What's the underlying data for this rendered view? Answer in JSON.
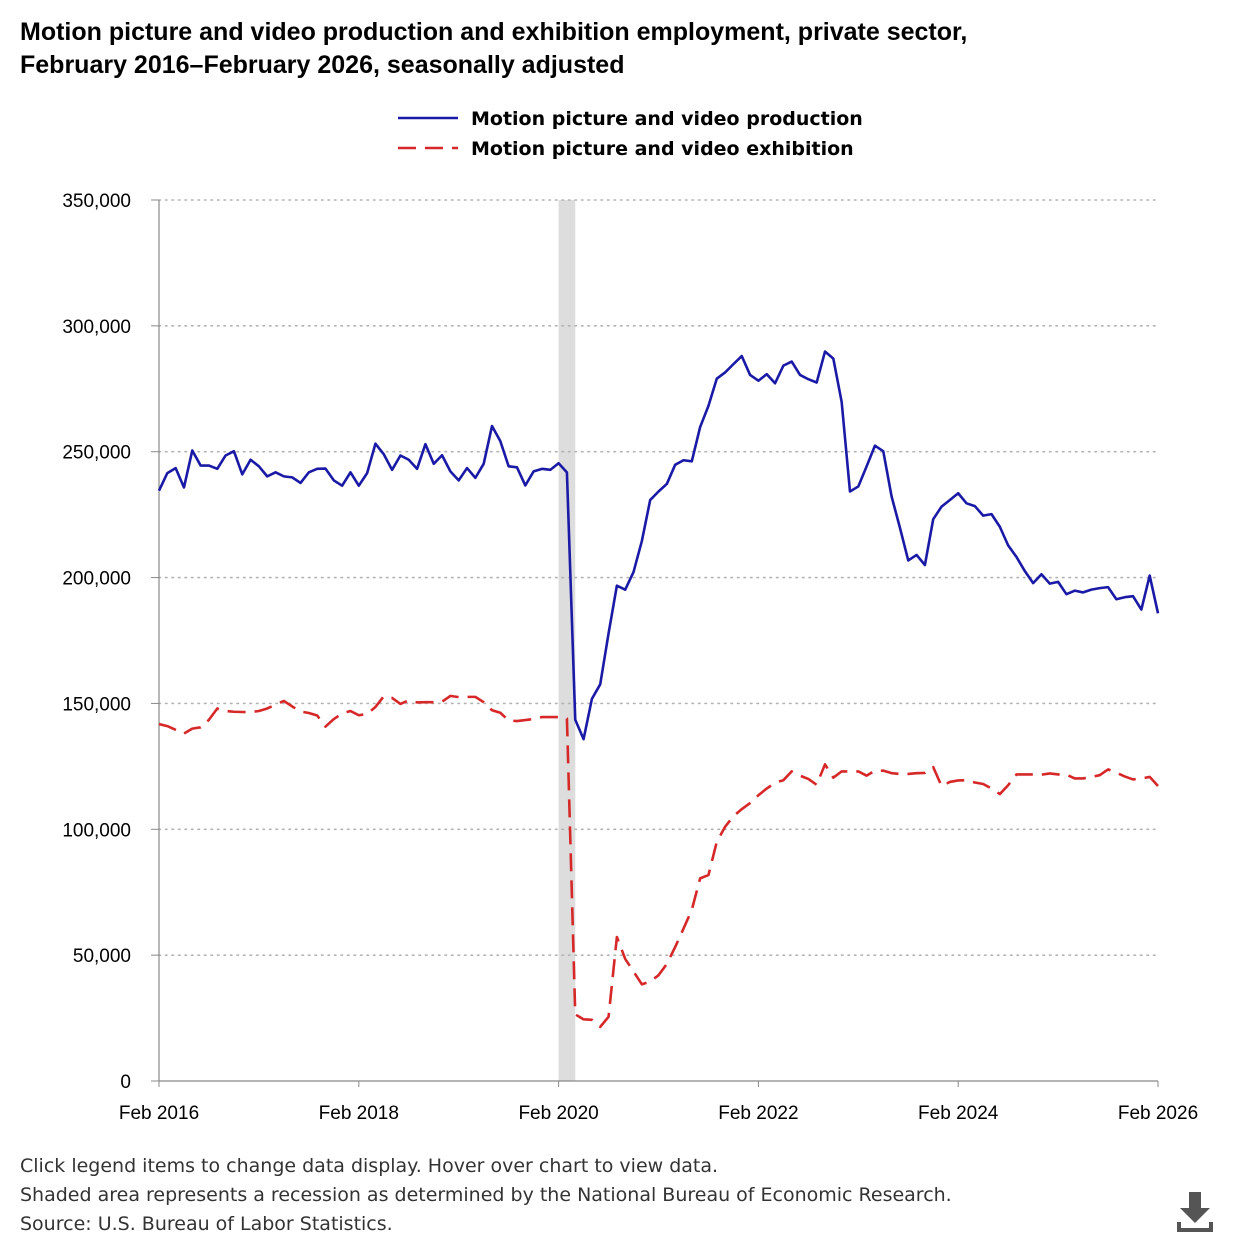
{
  "title_line1": "Motion picture and video production and exhibition employment, private sector,",
  "title_line2": "February 2016–February 2026, seasonally adjusted",
  "footnotes": [
    "Click legend items to change data display. Hover over chart to view data.",
    "Shaded area represents a recession as determined by the National Bureau of Economic Research.",
    "Source: U.S. Bureau of Labor Statistics."
  ],
  "download_icon": "download-icon",
  "chart_data": {
    "type": "line",
    "title": "Motion picture and video production and exhibition employment, private sector, February 2016–February 2026, seasonally adjusted",
    "ylim": [
      0,
      350000
    ],
    "yticks": [
      0,
      50000,
      100000,
      150000,
      200000,
      250000,
      300000,
      350000
    ],
    "ytick_labels": [
      "0",
      "50,000",
      "100,000",
      "150,000",
      "200,000",
      "250,000",
      "300,000",
      "350,000"
    ],
    "xlim": [
      "2016-02",
      "2026-02"
    ],
    "xtick_labels": [
      "Feb 2016",
      "Feb 2018",
      "Feb 2020",
      "Feb 2022",
      "Feb 2024",
      "Feb 2026"
    ],
    "grid": "horizontal dotted",
    "legend_position": "top-center",
    "recession_shading": {
      "start": "2020-02",
      "end": "2020-04",
      "color": "#dddddd"
    },
    "series": [
      {
        "name": "Motion picture and video production",
        "color": "#1a1aa6",
        "style": "solid",
        "points": [
          [
            "2016-02",
            234500
          ],
          [
            "2016-03",
            241500
          ],
          [
            "2016-04",
            243500
          ],
          [
            "2016-05",
            235800
          ],
          [
            "2016-06",
            250500
          ],
          [
            "2016-07",
            244500
          ],
          [
            "2016-08",
            244500
          ],
          [
            "2016-09",
            243200
          ],
          [
            "2016-10",
            248500
          ],
          [
            "2016-11",
            250200
          ],
          [
            "2016-12",
            241000
          ],
          [
            "2017-01",
            246800
          ],
          [
            "2017-02",
            244200
          ],
          [
            "2017-03",
            240200
          ],
          [
            "2017-04",
            241800
          ],
          [
            "2017-05",
            240200
          ],
          [
            "2017-06",
            239800
          ],
          [
            "2017-07",
            237600
          ],
          [
            "2017-08",
            241800
          ],
          [
            "2017-09",
            243200
          ],
          [
            "2017-10",
            243300
          ],
          [
            "2017-11",
            238600
          ],
          [
            "2017-12",
            236500
          ],
          [
            "2018-01",
            241800
          ],
          [
            "2018-02",
            236500
          ],
          [
            "2018-03",
            241500
          ],
          [
            "2018-04",
            253200
          ],
          [
            "2018-05",
            249000
          ],
          [
            "2018-06",
            242800
          ],
          [
            "2018-07",
            248500
          ],
          [
            "2018-08",
            246800
          ],
          [
            "2018-09",
            243200
          ],
          [
            "2018-10",
            253000
          ],
          [
            "2018-11",
            245200
          ],
          [
            "2018-12",
            248600
          ],
          [
            "2019-01",
            242200
          ],
          [
            "2019-02",
            238600
          ],
          [
            "2019-03",
            243500
          ],
          [
            "2019-04",
            239600
          ],
          [
            "2019-05",
            245200
          ],
          [
            "2019-06",
            260200
          ],
          [
            "2019-07",
            254200
          ],
          [
            "2019-08",
            244200
          ],
          [
            "2019-09",
            243800
          ],
          [
            "2019-10",
            236600
          ],
          [
            "2019-11",
            242200
          ],
          [
            "2019-12",
            243200
          ],
          [
            "2020-01",
            242800
          ],
          [
            "2020-02",
            245400
          ],
          [
            "2020-03",
            241800
          ],
          [
            "2020-04",
            143500
          ],
          [
            "2020-05",
            135800
          ],
          [
            "2020-06",
            151800
          ],
          [
            "2020-07",
            157600
          ],
          [
            "2020-08",
            177800
          ],
          [
            "2020-09",
            196800
          ],
          [
            "2020-10",
            195200
          ],
          [
            "2020-11",
            202200
          ],
          [
            "2020-12",
            214500
          ],
          [
            "2021-01",
            230800
          ],
          [
            "2021-02",
            234200
          ],
          [
            "2021-03",
            237200
          ],
          [
            "2021-04",
            244800
          ],
          [
            "2021-05",
            246600
          ],
          [
            "2021-06",
            246200
          ],
          [
            "2021-07",
            259800
          ],
          [
            "2021-08",
            268200
          ],
          [
            "2021-09",
            279000
          ],
          [
            "2021-10",
            281500
          ],
          [
            "2021-11",
            284800
          ],
          [
            "2021-12",
            288000
          ],
          [
            "2022-01",
            280500
          ],
          [
            "2022-02",
            278200
          ],
          [
            "2022-03",
            280800
          ],
          [
            "2022-04",
            277200
          ],
          [
            "2022-05",
            284200
          ],
          [
            "2022-06",
            285800
          ],
          [
            "2022-07",
            280500
          ],
          [
            "2022-08",
            278800
          ],
          [
            "2022-09",
            277500
          ],
          [
            "2022-10",
            289800
          ],
          [
            "2022-11",
            287000
          ],
          [
            "2022-12",
            269800
          ],
          [
            "2023-01",
            234200
          ],
          [
            "2023-02",
            236200
          ],
          [
            "2023-03",
            244200
          ],
          [
            "2023-04",
            252400
          ],
          [
            "2023-05",
            250200
          ],
          [
            "2023-06",
            232200
          ],
          [
            "2023-07",
            219800
          ],
          [
            "2023-08",
            206800
          ],
          [
            "2023-09",
            209000
          ],
          [
            "2023-10",
            205000
          ],
          [
            "2023-11",
            223200
          ],
          [
            "2023-12",
            228200
          ],
          [
            "2024-01",
            230800
          ],
          [
            "2024-02",
            233500
          ],
          [
            "2024-03",
            229500
          ],
          [
            "2024-04",
            228400
          ],
          [
            "2024-05",
            224600
          ],
          [
            "2024-06",
            225200
          ],
          [
            "2024-07",
            220200
          ],
          [
            "2024-08",
            212800
          ],
          [
            "2024-09",
            208200
          ],
          [
            "2024-10",
            202600
          ],
          [
            "2024-11",
            197800
          ],
          [
            "2024-12",
            201300
          ],
          [
            "2025-01",
            197600
          ],
          [
            "2025-02",
            198300
          ],
          [
            "2025-03",
            193400
          ],
          [
            "2025-04",
            194800
          ],
          [
            "2025-05",
            194100
          ],
          [
            "2025-06",
            195200
          ],
          [
            "2025-07",
            195800
          ],
          [
            "2025-08",
            196200
          ],
          [
            "2025-09",
            191400
          ],
          [
            "2025-10",
            192200
          ],
          [
            "2025-11",
            192600
          ],
          [
            "2025-12",
            187300
          ],
          [
            "2026-01",
            200800
          ],
          [
            "2026-02",
            185800
          ]
        ]
      },
      {
        "name": "Motion picture and video exhibition",
        "color": "#d62828",
        "style": "dashed",
        "points": [
          [
            "2016-02",
            141800
          ],
          [
            "2016-03",
            141000
          ],
          [
            "2016-04",
            139500
          ],
          [
            "2016-05",
            138000
          ],
          [
            "2016-06",
            140000
          ],
          [
            "2016-07",
            140500
          ],
          [
            "2016-08",
            143500
          ],
          [
            "2016-09",
            148000
          ],
          [
            "2016-10",
            147000
          ],
          [
            "2016-11",
            146700
          ],
          [
            "2016-12",
            146600
          ],
          [
            "2017-01",
            146500
          ],
          [
            "2017-02",
            147000
          ],
          [
            "2017-03",
            148000
          ],
          [
            "2017-04",
            149500
          ],
          [
            "2017-05",
            151000
          ],
          [
            "2017-06",
            148800
          ],
          [
            "2017-07",
            146800
          ],
          [
            "2017-08",
            146200
          ],
          [
            "2017-09",
            145200
          ],
          [
            "2017-10",
            140800
          ],
          [
            "2017-11",
            143800
          ],
          [
            "2017-12",
            146000
          ],
          [
            "2018-01",
            147000
          ],
          [
            "2018-02",
            145300
          ],
          [
            "2018-03",
            145800
          ],
          [
            "2018-04",
            148600
          ],
          [
            "2018-05",
            152800
          ],
          [
            "2018-06",
            152200
          ],
          [
            "2018-07",
            149800
          ],
          [
            "2018-08",
            151200
          ],
          [
            "2018-09",
            150400
          ],
          [
            "2018-10",
            150500
          ],
          [
            "2018-11",
            150500
          ],
          [
            "2018-12",
            150700
          ],
          [
            "2019-01",
            153000
          ],
          [
            "2019-02",
            152500
          ],
          [
            "2019-03",
            152600
          ],
          [
            "2019-04",
            152600
          ],
          [
            "2019-05",
            150500
          ],
          [
            "2019-06",
            147300
          ],
          [
            "2019-07",
            146300
          ],
          [
            "2019-08",
            143200
          ],
          [
            "2019-09",
            143000
          ],
          [
            "2019-10",
            143400
          ],
          [
            "2019-11",
            143800
          ],
          [
            "2019-12",
            144600
          ],
          [
            "2020-01",
            144600
          ],
          [
            "2020-02",
            144600
          ],
          [
            "2020-03",
            144000
          ],
          [
            "2020-04",
            26500
          ],
          [
            "2020-05",
            24500
          ],
          [
            "2020-06",
            24300
          ],
          [
            "2020-07",
            21500
          ],
          [
            "2020-08",
            25500
          ],
          [
            "2020-09",
            57200
          ],
          [
            "2020-10",
            48500
          ],
          [
            "2020-11",
            43500
          ],
          [
            "2020-12",
            38400
          ],
          [
            "2021-01",
            39500
          ],
          [
            "2021-02",
            42000
          ],
          [
            "2021-03",
            46500
          ],
          [
            "2021-04",
            53200
          ],
          [
            "2021-05",
            60500
          ],
          [
            "2021-06",
            68000
          ],
          [
            "2021-07",
            80500
          ],
          [
            "2021-08",
            81800
          ],
          [
            "2021-09",
            95000
          ],
          [
            "2021-10",
            101000
          ],
          [
            "2021-11",
            105200
          ],
          [
            "2021-12",
            108000
          ],
          [
            "2022-01",
            110400
          ],
          [
            "2022-02",
            113500
          ],
          [
            "2022-03",
            116200
          ],
          [
            "2022-04",
            118500
          ],
          [
            "2022-05",
            119500
          ],
          [
            "2022-06",
            123000
          ],
          [
            "2022-07",
            121300
          ],
          [
            "2022-08",
            120000
          ],
          [
            "2022-09",
            117700
          ],
          [
            "2022-10",
            125800
          ],
          [
            "2022-11",
            120500
          ],
          [
            "2022-12",
            123000
          ],
          [
            "2023-01",
            123000
          ],
          [
            "2023-02",
            123000
          ],
          [
            "2023-03",
            121300
          ],
          [
            "2023-04",
            123300
          ],
          [
            "2023-05",
            123300
          ],
          [
            "2023-06",
            122300
          ],
          [
            "2023-07",
            122000
          ],
          [
            "2023-08",
            122000
          ],
          [
            "2023-09",
            122300
          ],
          [
            "2023-10",
            122400
          ],
          [
            "2023-11",
            124700
          ],
          [
            "2023-12",
            117200
          ],
          [
            "2024-01",
            118800
          ],
          [
            "2024-02",
            119400
          ],
          [
            "2024-03",
            119500
          ],
          [
            "2024-04",
            118600
          ],
          [
            "2024-05",
            118000
          ],
          [
            "2024-06",
            116200
          ],
          [
            "2024-07",
            114000
          ],
          [
            "2024-08",
            117500
          ],
          [
            "2024-09",
            121800
          ],
          [
            "2024-10",
            121800
          ],
          [
            "2024-11",
            121800
          ],
          [
            "2024-12",
            121700
          ],
          [
            "2025-01",
            122200
          ],
          [
            "2025-02",
            121800
          ],
          [
            "2025-03",
            121700
          ],
          [
            "2025-04",
            120200
          ],
          [
            "2025-05",
            120200
          ],
          [
            "2025-06",
            120800
          ],
          [
            "2025-07",
            121500
          ],
          [
            "2025-08",
            123800
          ],
          [
            "2025-09",
            122500
          ],
          [
            "2025-10",
            121000
          ],
          [
            "2025-11",
            119800
          ],
          [
            "2025-12",
            120200
          ],
          [
            "2026-01",
            120800
          ],
          [
            "2026-02",
            117200
          ]
        ]
      }
    ]
  }
}
